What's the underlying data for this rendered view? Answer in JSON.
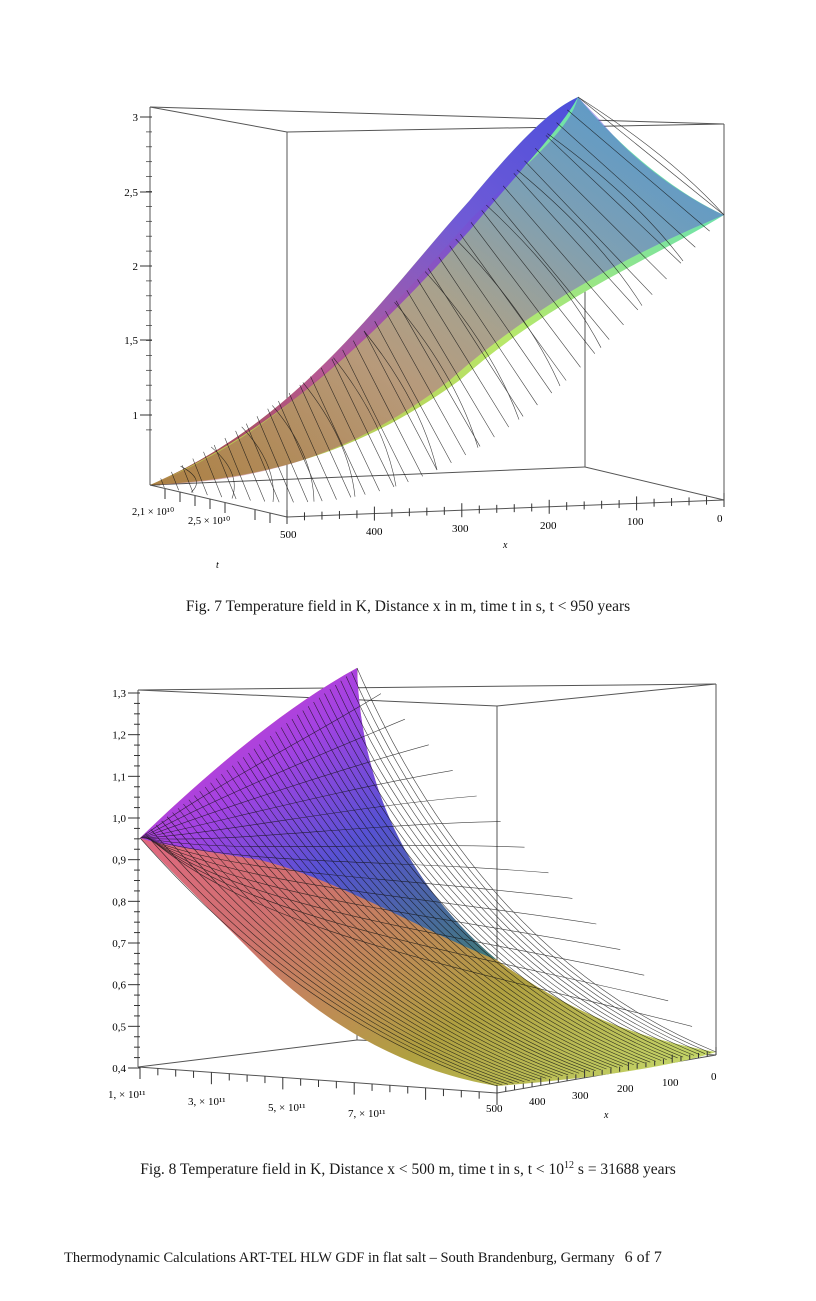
{
  "figure7": {
    "caption": "Fig. 7 Temperature field in K, Distance x in m, time t in s,  t < 950 years",
    "z_ticks": [
      "3",
      "2,5",
      "2",
      "1,5",
      "1"
    ],
    "t_ticks": [
      "2,1 × 10¹⁰",
      "2,5 × 10¹⁰"
    ],
    "x_ticks": [
      "500",
      "400",
      "300",
      "200",
      "100",
      "0"
    ],
    "t_label": "t",
    "x_label": "x"
  },
  "figure8": {
    "caption_main": "Fig. 8 Temperature field in K, Distance x < 500 m, time t in s,  t < 10",
    "caption_sup": "12",
    "caption_end": "  s = 31688 years",
    "z_ticks": [
      "1,3",
      "1,2",
      "1,1",
      "1,0",
      "0,9",
      "0,8",
      "0,7",
      "0,6",
      "0,5",
      "0,4"
    ],
    "t_ticks": [
      "1, × 10¹¹",
      "3, × 10¹¹",
      "5, × 10¹¹",
      "7, × 10¹¹"
    ],
    "x_ticks": [
      "500",
      "400",
      "300",
      "200",
      "100",
      "0"
    ],
    "x_label": "x"
  },
  "footer": {
    "text": "Thermodynamic Calculations ART-TEL  HLW  GDF in flat salt – South Brandenburg, Germany",
    "page": "6 of 7"
  }
}
